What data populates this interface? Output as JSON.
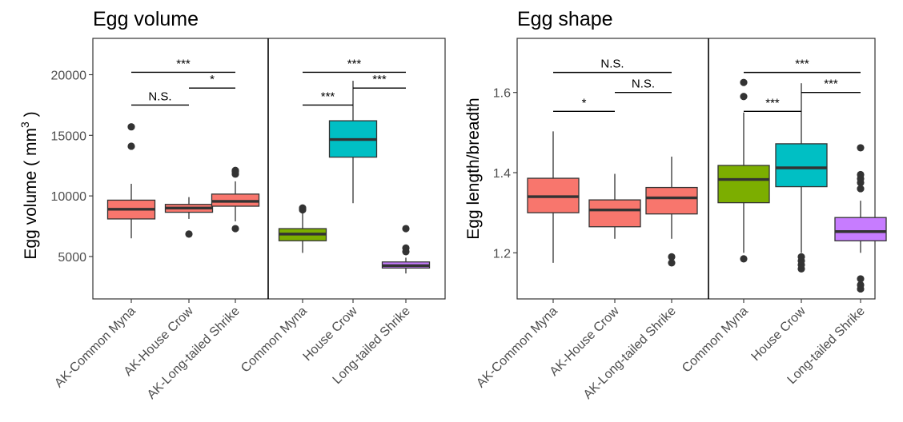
{
  "colors": {
    "AK-Common Myna": "#F8766D",
    "AK-House Crow": "#F8766D",
    "AK-Long-tailed Shrike": "#F8766D",
    "Common Myna": "#7CAE00",
    "House Crow": "#00BFC4",
    "Long-tailed Shrike": "#C77CFF",
    "frame": "#333333",
    "tick_text": "#4D4D4D"
  },
  "chart_data": [
    {
      "type": "box",
      "title": "Egg volume",
      "ylabel": "Egg volume ( mm",
      "ylabel_sup": "3",
      "ylabel_tail": " )",
      "ylim": [
        1500,
        23000
      ],
      "yticks": [
        5000,
        10000,
        15000,
        20000
      ],
      "ytick_labels": [
        "5000",
        "10000",
        "15000",
        "20000"
      ],
      "categories": [
        "AK-Common Myna",
        "AK-House Crow",
        "AK-Long-tailed Shrike",
        "Common Myna",
        "House Crow",
        "Long-tailed Shrike"
      ],
      "boxes": [
        {
          "category": "AK-Common Myna",
          "whisker_low": 6500,
          "q1": 8100,
          "median": 8900,
          "q3": 9650,
          "whisker_high": 11000,
          "outliers": [
            14100,
            15700
          ]
        },
        {
          "category": "AK-House Crow",
          "whisker_low": 8100,
          "q1": 8650,
          "median": 9000,
          "q3": 9300,
          "whisker_high": 9900,
          "outliers": [
            6850
          ]
        },
        {
          "category": "AK-Long-tailed Shrike",
          "whisker_low": 7900,
          "q1": 9150,
          "median": 9550,
          "q3": 10150,
          "whisker_high": 11200,
          "outliers": [
            7300,
            11800,
            12000,
            12100
          ]
        },
        {
          "category": "Common Myna",
          "whisker_low": 5300,
          "q1": 6300,
          "median": 6850,
          "q3": 7300,
          "whisker_high": 8700,
          "outliers": [
            8850,
            9000
          ]
        },
        {
          "category": "House Crow",
          "whisker_low": 9400,
          "q1": 13200,
          "median": 14650,
          "q3": 16200,
          "whisker_high": 19500,
          "outliers": []
        },
        {
          "category": "Long-tailed Shrike",
          "whisker_low": 3600,
          "q1": 4050,
          "median": 4250,
          "q3": 4550,
          "whisker_high": 4900,
          "outliers": [
            5400,
            5700,
            7300
          ]
        }
      ],
      "annotations": [
        {
          "from": 0,
          "to": 1,
          "y": 17500,
          "label": "N.S."
        },
        {
          "from": 0,
          "to": 2,
          "y": 20200,
          "label": "***"
        },
        {
          "from": 1,
          "to": 2,
          "y": 18900,
          "label": "*"
        },
        {
          "from": 3,
          "to": 4,
          "y": 17500,
          "label": "***"
        },
        {
          "from": 3,
          "to": 5,
          "y": 20200,
          "label": "***"
        },
        {
          "from": 4,
          "to": 5,
          "y": 18900,
          "label": "***"
        }
      ]
    },
    {
      "type": "box",
      "title": "Egg shape",
      "ylabel": "Egg length/breadth",
      "ylim": [
        1.085,
        1.735
      ],
      "yticks": [
        1.2,
        1.4,
        1.6
      ],
      "ytick_labels": [
        "1.2",
        "1.4",
        "1.6"
      ],
      "categories": [
        "AK-Common Myna",
        "AK-House Crow",
        "AK-Long-tailed Shrike",
        "Common Myna",
        "House Crow",
        "Long-tailed Shrike"
      ],
      "boxes": [
        {
          "category": "AK-Common Myna",
          "whisker_low": 1.175,
          "q1": 1.3,
          "median": 1.34,
          "q3": 1.386,
          "whisker_high": 1.503,
          "outliers": []
        },
        {
          "category": "AK-House Crow",
          "whisker_low": 1.235,
          "q1": 1.265,
          "median": 1.307,
          "q3": 1.332,
          "whisker_high": 1.397,
          "outliers": []
        },
        {
          "category": "AK-Long-tailed Shrike",
          "whisker_low": 1.235,
          "q1": 1.297,
          "median": 1.337,
          "q3": 1.363,
          "whisker_high": 1.44,
          "outliers": [
            1.175,
            1.19
          ]
        },
        {
          "category": "Common Myna",
          "whisker_low": 1.2,
          "q1": 1.325,
          "median": 1.383,
          "q3": 1.418,
          "whisker_high": 1.55,
          "outliers": [
            1.185,
            1.59,
            1.625
          ]
        },
        {
          "category": "House Crow",
          "whisker_low": 1.2,
          "q1": 1.365,
          "median": 1.412,
          "q3": 1.472,
          "whisker_high": 1.623,
          "outliers": [
            1.16,
            1.17,
            1.18,
            1.19
          ]
        },
        {
          "category": "Long-tailed Shrike",
          "whisker_low": 1.2,
          "q1": 1.23,
          "median": 1.253,
          "q3": 1.288,
          "whisker_high": 1.33,
          "outliers": [
            1.11,
            1.12,
            1.135,
            1.36,
            1.375,
            1.385,
            1.395,
            1.462
          ]
        }
      ],
      "annotations": [
        {
          "from": 0,
          "to": 1,
          "y": 1.553,
          "label": "*"
        },
        {
          "from": 0,
          "to": 2,
          "y": 1.65,
          "label": "N.S."
        },
        {
          "from": 1,
          "to": 2,
          "y": 1.6,
          "label": "N.S."
        },
        {
          "from": 3,
          "to": 4,
          "y": 1.553,
          "label": "***"
        },
        {
          "from": 3,
          "to": 5,
          "y": 1.65,
          "label": "***"
        },
        {
          "from": 4,
          "to": 5,
          "y": 1.6,
          "label": "***"
        }
      ]
    }
  ]
}
